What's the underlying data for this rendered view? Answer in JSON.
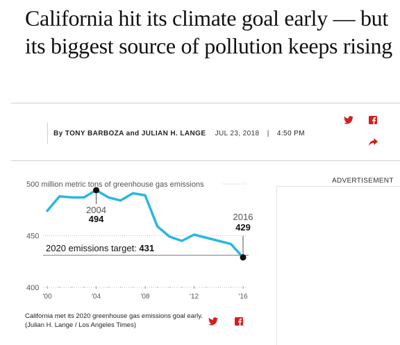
{
  "article": {
    "headline": "California hit its climate goal early — but its biggest source of pollution keeps rising",
    "byline_prefix": "By",
    "authors": "TONY BARBOZA and JULIAN H. LANGE",
    "date": "JUL 23, 2018",
    "separator": "|",
    "time": "4:50 PM"
  },
  "share": {
    "twitter_icon": "twitter-icon",
    "facebook_icon": "facebook-icon",
    "share_icon": "share-arrow-icon",
    "accent_color": "#d3201f"
  },
  "ad": {
    "label": "ADVERTISEMENT"
  },
  "chart_data": {
    "type": "line",
    "title": "500 million metric tons of greenhouse gas emissions",
    "x": [
      2000,
      2001,
      2002,
      2003,
      2004,
      2005,
      2006,
      2007,
      2008,
      2009,
      2010,
      2011,
      2012,
      2013,
      2014,
      2015,
      2016
    ],
    "values": [
      474,
      488,
      487,
      487,
      494,
      487,
      484,
      491,
      489,
      459,
      449,
      445,
      451,
      448,
      445,
      442,
      429
    ],
    "ylim": [
      400,
      500
    ],
    "yticks": [
      "500",
      "450",
      "400"
    ],
    "ytick_values": [
      500,
      450,
      400
    ],
    "xtick_labels": [
      "'00",
      "'04",
      "'08",
      "'12",
      "'16"
    ],
    "xtick_values": [
      2000,
      2004,
      2008,
      2012,
      2016
    ],
    "line_color": "#29b6e6",
    "annotations": [
      {
        "year_label": "2004",
        "value_label": "494",
        "x": 2004,
        "y": 494
      },
      {
        "year_label": "2016",
        "value_label": "429",
        "x": 2016,
        "y": 429
      }
    ],
    "target": {
      "label": "2020 emissions target:",
      "value_label": "431",
      "value": 431
    },
    "caption": "California met its 2020 greenhouse gas emissions goal early. (Julian H. Lange / Los Angeles Times)"
  }
}
